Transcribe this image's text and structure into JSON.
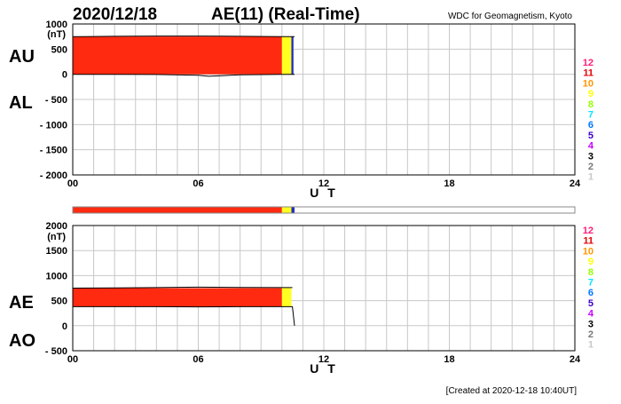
{
  "header": {
    "date": "2020/12/18",
    "title": "AE(11) (Real-Time)",
    "source": "WDC for Geomagnetism, Kyoto",
    "created": "[Created at 2020-12-18 10:40UT]"
  },
  "colors": {
    "red": "#ff2a10",
    "yellow": "#ffff20",
    "blue": "#2030c0",
    "grid": "#c8c8c8",
    "axis": "#000000"
  },
  "legend": [
    {
      "label": "12",
      "color": "#ff1e78"
    },
    {
      "label": "11",
      "color": "#e60000"
    },
    {
      "label": "10",
      "color": "#ff9600"
    },
    {
      "label": "9",
      "color": "#ffff00"
    },
    {
      "label": "8",
      "color": "#96ff00"
    },
    {
      "label": "7",
      "color": "#00e6ff"
    },
    {
      "label": "6",
      "color": "#0078ff"
    },
    {
      "label": "5",
      "color": "#3c00c8"
    },
    {
      "label": "4",
      "color": "#c800ff"
    },
    {
      "label": "3",
      "color": "#000000"
    },
    {
      "label": "2",
      "color": "#787878"
    },
    {
      "label": "1",
      "color": "#c8c8c8"
    }
  ],
  "chart_data": [
    {
      "type": "area",
      "panel": "AU/AL",
      "labels": {
        "upper": "AU",
        "lower": "AL"
      },
      "unit": "(nT)",
      "xlabel": "U T",
      "xlim": [
        0,
        24
      ],
      "x_ticks": [
        "00",
        "06",
        "12",
        "18",
        "24"
      ],
      "ylim": [
        -2000,
        1000
      ],
      "y_ticks": [
        {
          "v": 1000,
          "label": "1000"
        },
        {
          "v": 500,
          "label": "500"
        },
        {
          "v": 0,
          "label": "0"
        },
        {
          "v": -500,
          "label": "- 500"
        },
        {
          "v": -1000,
          "label": "- 1000"
        },
        {
          "v": -1500,
          "label": "- 1500"
        },
        {
          "v": -2000,
          "label": "- 2000"
        }
      ],
      "grid": true,
      "bands": [
        {
          "x0": 0,
          "x1": 10.0,
          "y0": 0,
          "y1": 750,
          "color": "red",
          "stations": 11
        },
        {
          "x0": 10.0,
          "x1": 10.45,
          "y0": 0,
          "y1": 750,
          "color": "yellow",
          "stations": 9
        },
        {
          "x0": 10.45,
          "x1": 10.55,
          "y0": 0,
          "y1": 750,
          "color": "blue",
          "stations": 6
        }
      ],
      "series": [
        {
          "name": "AU",
          "x": [
            0,
            0.5,
            2,
            4,
            6,
            8,
            10,
            10.6
          ],
          "y": [
            750,
            750,
            755,
            760,
            760,
            755,
            750,
            750
          ]
        },
        {
          "name": "AL",
          "x": [
            0,
            2,
            4,
            6,
            6.5,
            8,
            10,
            10.6
          ],
          "y": [
            0,
            0,
            -5,
            -20,
            -40,
            -10,
            0,
            0
          ]
        }
      ]
    },
    {
      "type": "area",
      "panel": "AE/AO",
      "labels": {
        "upper": "AE",
        "lower": "AO"
      },
      "unit": "(nT)",
      "xlabel": "U T",
      "xlim": [
        0,
        24
      ],
      "x_ticks": [
        "00",
        "06",
        "12",
        "18",
        "24"
      ],
      "ylim": [
        -500,
        2000
      ],
      "y_ticks": [
        {
          "v": 2000,
          "label": "2000"
        },
        {
          "v": 1500,
          "label": "1500"
        },
        {
          "v": 1000,
          "label": "1000"
        },
        {
          "v": 500,
          "label": "500"
        },
        {
          "v": 0,
          "label": "0"
        },
        {
          "v": -500,
          "label": "- 500"
        }
      ],
      "grid": true,
      "bands": [
        {
          "x0": 0,
          "x1": 10.0,
          "y0": 380,
          "y1": 750,
          "color": "red",
          "stations": 11
        },
        {
          "x0": 10.0,
          "x1": 10.45,
          "y0": 380,
          "y1": 750,
          "color": "yellow",
          "stations": 9
        }
      ],
      "series": [
        {
          "name": "AE",
          "x": [
            0,
            2,
            4,
            6,
            8,
            10,
            10.5
          ],
          "y": [
            750,
            755,
            760,
            770,
            765,
            760,
            760
          ]
        },
        {
          "name": "AO",
          "x": [
            0,
            2,
            4,
            6,
            8,
            10,
            10.5,
            10.6
          ],
          "y": [
            380,
            380,
            380,
            375,
            380,
            380,
            380,
            0
          ]
        }
      ]
    }
  ],
  "coverage_strip": [
    {
      "x0": 0,
      "x1": 10.0,
      "color": "red"
    },
    {
      "x0": 10.0,
      "x1": 10.45,
      "color": "yellow"
    },
    {
      "x0": 10.45,
      "x1": 10.6,
      "color": "blue"
    }
  ]
}
